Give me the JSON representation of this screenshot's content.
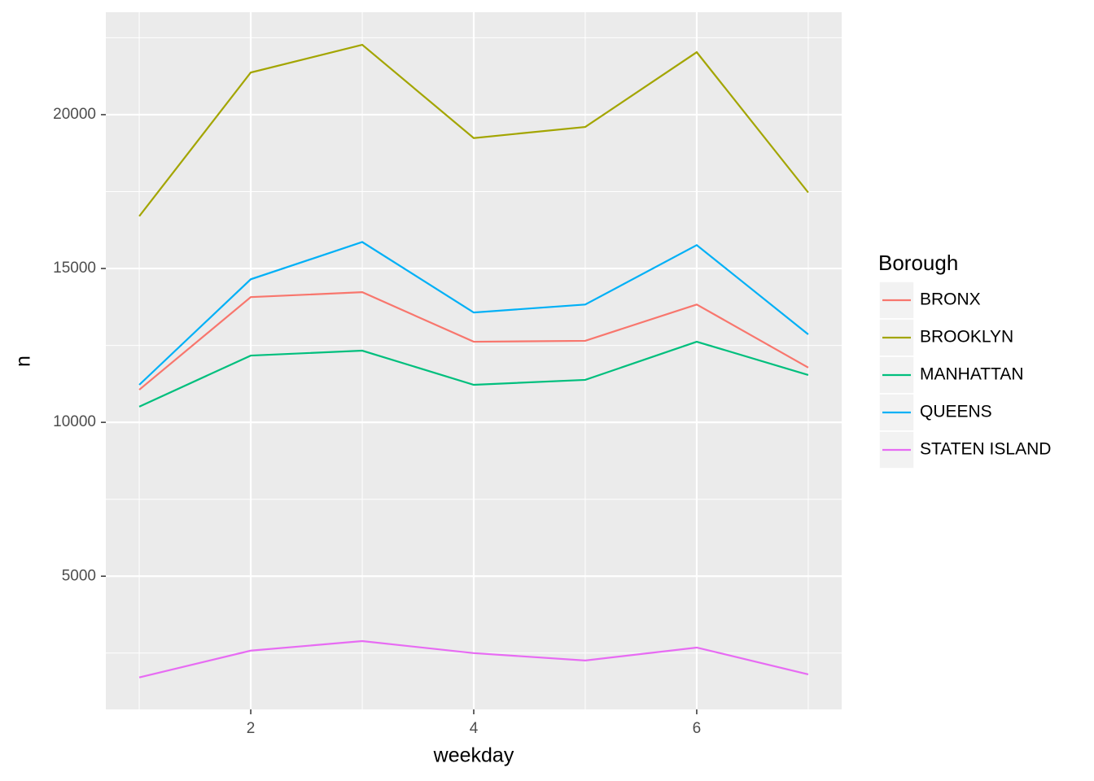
{
  "chart_data": {
    "type": "line",
    "x_label": "weekday",
    "y_label": "n",
    "x": [
      1,
      2,
      3,
      4,
      5,
      6,
      7
    ],
    "xlim": [
      0.7,
      7.3
    ],
    "xticks": [
      2,
      4,
      6
    ],
    "ylim": [
      670,
      23330
    ],
    "yticks": [
      5000,
      10000,
      15000,
      20000
    ],
    "grid": true,
    "legend_title": "Borough",
    "legend_position": "right",
    "series": [
      {
        "name": "BRONX",
        "color": "#F8766D",
        "values": [
          11060,
          14070,
          14230,
          12620,
          12650,
          13830,
          11780
        ]
      },
      {
        "name": "BROOKLYN",
        "color": "#A3A500",
        "values": [
          16700,
          21370,
          22270,
          19240,
          19600,
          22030,
          17470
        ]
      },
      {
        "name": "MANHATTAN",
        "color": "#00BF7D",
        "values": [
          10510,
          12170,
          12330,
          11220,
          11380,
          12620,
          11540
        ]
      },
      {
        "name": "QUEENS",
        "color": "#00B0F6",
        "values": [
          11220,
          14650,
          15860,
          13570,
          13830,
          15760,
          12860
        ]
      },
      {
        "name": "STATEN ISLAND",
        "color": "#E76BF3",
        "values": [
          1710,
          2580,
          2890,
          2500,
          2260,
          2680,
          1810
        ]
      }
    ]
  }
}
